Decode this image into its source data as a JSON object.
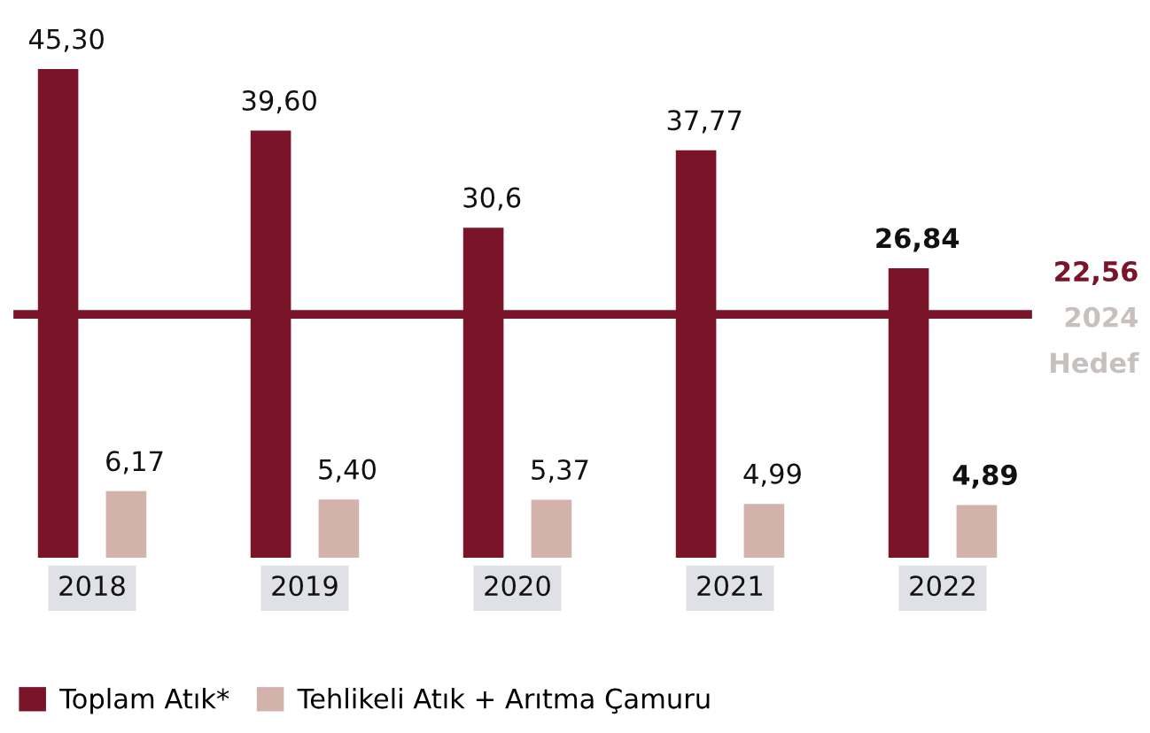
{
  "chart_data": {
    "type": "bar",
    "categories": [
      "2018",
      "2019",
      "2020",
      "2021",
      "2022"
    ],
    "series": [
      {
        "name": "Toplam Atık*",
        "color": "#7a1428",
        "values": [
          45.3,
          39.6,
          30.6,
          37.77,
          26.84
        ],
        "value_labels": [
          "45,30",
          "39,60",
          "30,6",
          "37,77",
          "26,84"
        ]
      },
      {
        "name": "Tehlikeli Atık + Arıtma Çamuru",
        "color": "#d4b2ac",
        "values": [
          6.17,
          5.4,
          5.37,
          4.99,
          4.89
        ],
        "value_labels": [
          "6,17",
          "5,40",
          "5,37",
          "4,99",
          "4,89"
        ]
      }
    ],
    "ref_lines": [
      {
        "axis": "y",
        "value": 22.56,
        "label": "22,56\n2024\nHedef",
        "color": "#7a1428"
      }
    ],
    "legend": "bottom left"
  }
}
